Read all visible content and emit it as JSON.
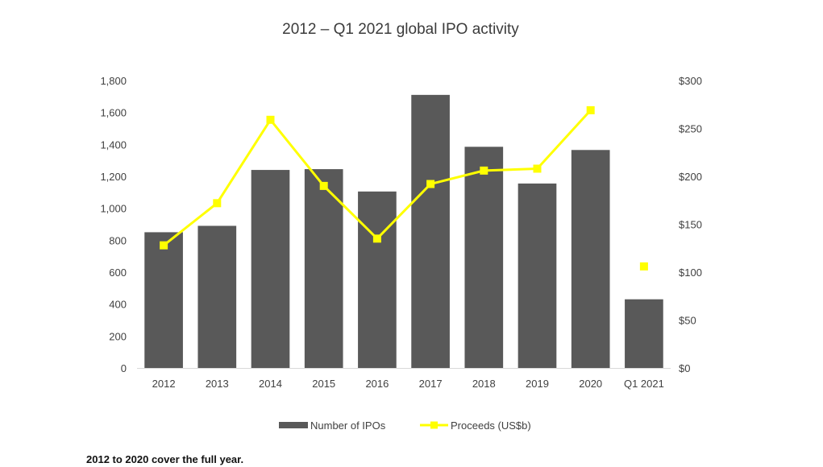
{
  "colors": {
    "bars": "#595959",
    "line": "#ffff00",
    "text": "#404040",
    "title": "#3b3b3b"
  },
  "chart_data": {
    "type": "bar",
    "title": "2012 – Q1 2021 global IPO activity",
    "categories": [
      "2012",
      "2013",
      "2014",
      "2015",
      "2016",
      "2017",
      "2018",
      "2019",
      "2020",
      "Q1 2021"
    ],
    "series": [
      {
        "name": "Number of IPOs",
        "type": "bar",
        "axis": "left",
        "values": [
          850,
          890,
          1240,
          1245,
          1105,
          1710,
          1385,
          1155,
          1365,
          430
        ]
      },
      {
        "name": "Proceeds (US$b)",
        "type": "line",
        "axis": "right",
        "values": [
          128,
          172,
          259,
          190,
          135,
          192,
          206,
          208,
          269,
          106
        ],
        "note_break_before_last": true
      }
    ],
    "y_left": {
      "min": 0,
      "max": 1800,
      "ticks": [
        "0",
        "200",
        "400",
        "600",
        "800",
        "1,000",
        "1,200",
        "1,400",
        "1,600",
        "1,800"
      ]
    },
    "y_right": {
      "min": 0,
      "max": 300,
      "ticks": [
        "$0",
        "$50",
        "$100",
        "$150",
        "$200",
        "$250",
        "$300"
      ]
    },
    "grid": false,
    "legend_position": "bottom"
  },
  "footnote": "2012 to 2020 cover the full year."
}
